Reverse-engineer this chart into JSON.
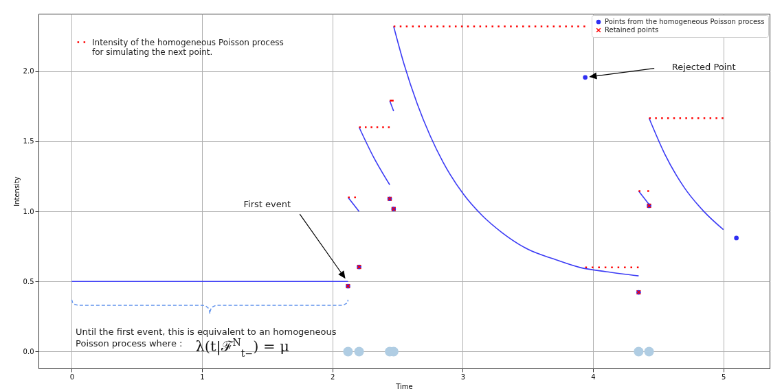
{
  "chart_data": {
    "type": "line",
    "xlabel": "Time",
    "ylabel": "Intensity",
    "xlim": [
      -0.255,
      5.355
    ],
    "ylim": [
      -0.12,
      2.41
    ],
    "xticks": [
      0,
      1,
      2,
      3,
      4,
      5
    ],
    "yticks": [
      {
        "value": 0,
        "label": "0.0"
      },
      {
        "value": 0.5,
        "label": "0.5"
      },
      {
        "value": 1,
        "label": "1.0"
      },
      {
        "value": 1.5,
        "label": "1.5"
      },
      {
        "value": 2,
        "label": "2.0"
      }
    ],
    "grid": true,
    "legend": "top right",
    "series": [
      {
        "type": "line",
        "color": "#3b3bf5",
        "x": [
          0,
          2.12,
          null,
          2.12,
          2.205,
          null,
          2.205,
          2.32,
          2.44,
          null,
          2.44,
          2.47,
          null,
          2.47,
          2.55,
          2.65,
          2.75,
          2.85,
          3.0,
          3.15,
          3.3,
          3.5,
          3.7,
          3.9,
          4.1,
          4.35,
          null,
          4.35,
          4.43,
          null,
          4.43,
          4.55,
          4.7,
          4.85,
          5.0
        ],
        "values": [
          0.5,
          0.5,
          null,
          1.1,
          1.0,
          null,
          1.6,
          1.38,
          1.19,
          null,
          1.79,
          1.715,
          null,
          2.32,
          2.05,
          1.77,
          1.54,
          1.35,
          1.13,
          0.97,
          0.85,
          0.73,
          0.66,
          0.6,
          0.57,
          0.54,
          null,
          1.145,
          1.05,
          null,
          1.665,
          1.41,
          1.17,
          1.0,
          0.87
        ]
      },
      {
        "type": "line",
        "name": "Intensity of the homogeneous Poisson process for simulating the next point.",
        "color": "#ff0000",
        "line_style": "dotted",
        "x": [
          2.12,
          2.2,
          null,
          2.205,
          2.44,
          null,
          2.44,
          2.47,
          null,
          2.47,
          3.94,
          null,
          3.94,
          4.35,
          null,
          4.35,
          4.43,
          null,
          4.43,
          5.0
        ],
        "values": [
          1.1,
          1.1,
          null,
          1.6,
          1.6,
          null,
          1.79,
          1.79,
          null,
          2.32,
          2.32,
          null,
          0.6,
          0.6,
          null,
          1.145,
          1.145,
          null,
          1.665,
          1.665
        ]
      },
      {
        "type": "scatter",
        "name": "Points from the homogeneous Poisson process",
        "color": "#2f2ff2",
        "marker": "circle",
        "x": [
          2.12,
          2.205,
          2.44,
          2.47,
          3.94,
          4.35,
          4.43,
          5.1
        ],
        "values": [
          0.467,
          0.604,
          1.09,
          1.017,
          1.956,
          0.423,
          1.04,
          0.81
        ]
      },
      {
        "type": "scatter",
        "name": "Retained points",
        "color": "#ff0000",
        "marker": "cross",
        "x": [
          2.12,
          2.205,
          2.44,
          2.47,
          4.35,
          4.43
        ],
        "values": [
          0.467,
          0.604,
          1.09,
          1.017,
          0.423,
          1.04
        ]
      },
      {
        "type": "scatter",
        "color": "#b0cde3",
        "marker": "circle",
        "x": [
          2.12,
          2.205,
          2.44,
          2.47,
          4.35,
          4.43
        ],
        "values": [
          0,
          0,
          0,
          0,
          0,
          0
        ]
      }
    ],
    "annotations": [
      "First event",
      "Rejected Point",
      "Until the first event, this is equivalent to an homogeneous Poisson process where :",
      "λ(t|ℱ$^{N}$$_{t−}$) = μ"
    ]
  }
}
